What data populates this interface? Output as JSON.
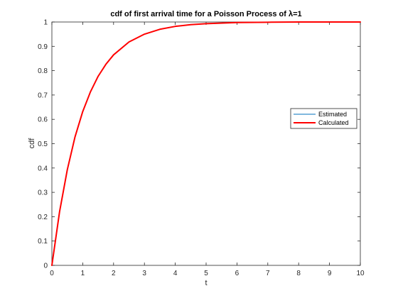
{
  "chart_data": {
    "type": "line",
    "title": "cdf of first arrival time for a Poisson Process of λ=1",
    "xlabel": "t",
    "ylabel": "cdf",
    "xlim": [
      0,
      10
    ],
    "ylim": [
      0,
      1
    ],
    "xticks": [
      0,
      1,
      2,
      3,
      4,
      5,
      6,
      7,
      8,
      9,
      10
    ],
    "yticks": [
      0,
      0.1,
      0.2,
      0.3,
      0.4,
      0.5,
      0.6,
      0.7,
      0.8,
      0.9,
      1
    ],
    "grid": false,
    "legend_position": "right",
    "series": [
      {
        "name": "Estimated",
        "color": "#0072BD",
        "x": [
          0,
          0.25,
          0.5,
          0.75,
          1,
          1.25,
          1.5,
          1.75,
          2,
          2.5,
          3,
          3.5,
          4,
          4.5,
          5,
          6,
          7,
          8,
          9,
          10
        ],
        "y": [
          0,
          0.221,
          0.393,
          0.528,
          0.632,
          0.713,
          0.777,
          0.826,
          0.865,
          0.918,
          0.95,
          0.97,
          0.982,
          0.989,
          0.993,
          0.998,
          0.999,
          1.0,
          1.0,
          1.0
        ]
      },
      {
        "name": "Calculated",
        "color": "#FF0000",
        "x": [
          0,
          0.25,
          0.5,
          0.75,
          1,
          1.25,
          1.5,
          1.75,
          2,
          2.5,
          3,
          3.5,
          4,
          4.5,
          5,
          6,
          7,
          8,
          9,
          10
        ],
        "y": [
          0,
          0.221,
          0.393,
          0.528,
          0.632,
          0.713,
          0.777,
          0.826,
          0.865,
          0.918,
          0.95,
          0.97,
          0.982,
          0.989,
          0.993,
          0.998,
          0.999,
          1.0,
          1.0,
          1.0
        ]
      }
    ]
  }
}
